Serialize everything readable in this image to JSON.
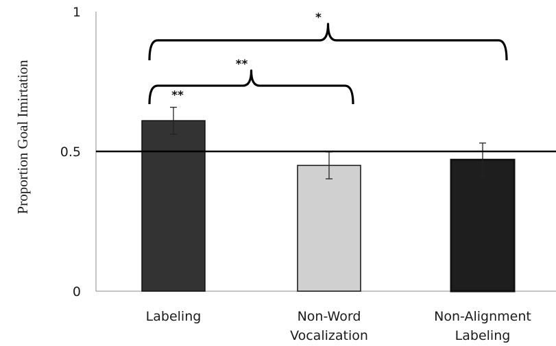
{
  "chart_data": {
    "type": "bar",
    "title": "",
    "xlabel": "",
    "ylabel": "Proportion Goal Imirtation",
    "ylim": [
      0,
      1
    ],
    "yticks": [
      {
        "value": 0,
        "label": "0"
      },
      {
        "value": 0.5,
        "label": "0.5"
      },
      {
        "value": 1,
        "label": "1"
      }
    ],
    "reference_line": 0.5,
    "categories": [
      {
        "label": [
          "Labeling"
        ]
      },
      {
        "label": [
          "Non-Word",
          "Vocalization"
        ]
      },
      {
        "label": [
          "Non-Alignment",
          "Labeling"
        ]
      }
    ],
    "values": [
      0.61,
      0.45,
      0.47
    ],
    "errors": [
      0.048,
      0.048,
      0.06
    ],
    "colors": [
      "#333333",
      "#d0d0d0",
      "#1e1e1e"
    ],
    "significance": [
      {
        "label": "**",
        "from": 0,
        "to": 0,
        "marker_above": "bar"
      },
      {
        "label": "**",
        "from": 0,
        "to": 1
      },
      {
        "label": "*",
        "from": 0,
        "to": 2
      }
    ]
  }
}
